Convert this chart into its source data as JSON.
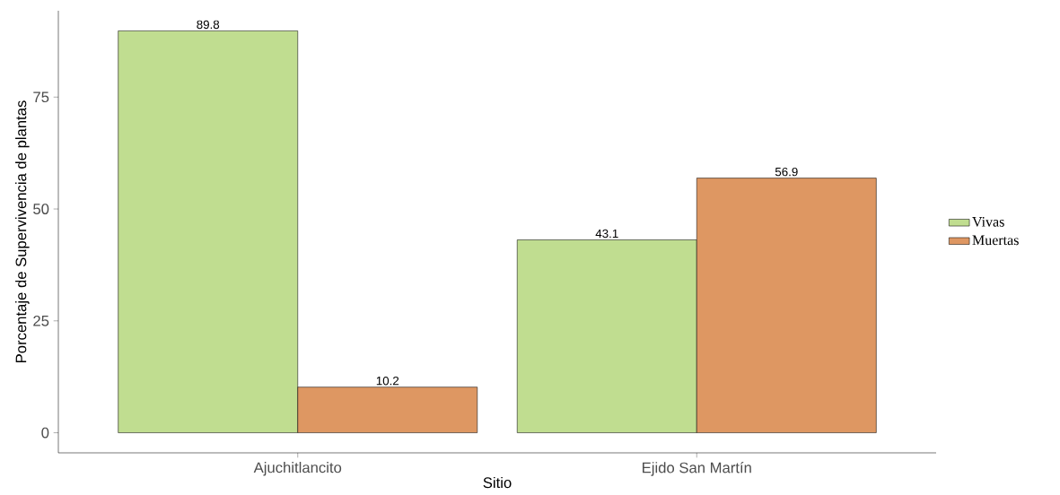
{
  "chart_data": {
    "type": "bar",
    "xlabel": "Sitio",
    "ylabel": "Porcentaje de Supervivencia de plantas",
    "categories": [
      "Ajuchitlancito",
      "Ejido San Martín"
    ],
    "series": [
      {
        "name": "Vivas",
        "color": "#c0dd90",
        "values": [
          89.8,
          43.1
        ]
      },
      {
        "name": "Muertas",
        "color": "#de9762",
        "values": [
          10.2,
          56.9
        ]
      }
    ],
    "ylim": [
      -4.49,
      94.29
    ],
    "yticks": [
      0,
      25,
      50,
      75
    ],
    "data_labels": true,
    "legend": "right"
  }
}
